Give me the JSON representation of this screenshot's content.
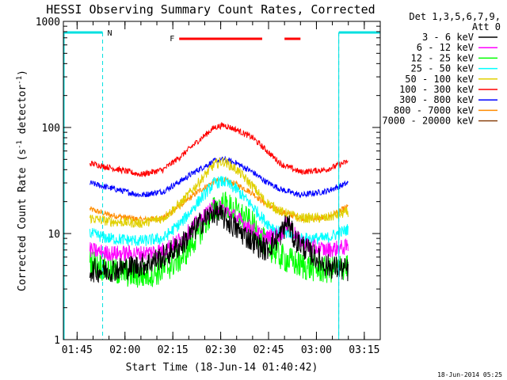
{
  "chart_data": {
    "type": "line",
    "title": "HESSI Observing Summary Count Rates, Corrected",
    "xlabel": "Start Time (18-Jun-14 01:40:42)",
    "ylabel": "Corrected Count Rate (s⁻¹ detector⁻¹)",
    "ylabel_parts": {
      "base": "Corrected Count Rate (s",
      "sup1": "-1",
      "mid": " detector",
      "sup2": "-1",
      "end": ")"
    },
    "yscale": "log",
    "ylim": [
      1,
      1000
    ],
    "xlim": [
      "01:40:42",
      "03:20:00"
    ],
    "x_ticks": [
      "01:45",
      "02:00",
      "02:15",
      "02:30",
      "02:45",
      "03:00",
      "03:15"
    ],
    "y_ticks": [
      "1",
      "10",
      "100",
      "1000"
    ],
    "grid": false,
    "legend_position": "right-outside",
    "legend_title": [
      "Det 1,3,5,6,7,9,",
      "Att 0"
    ],
    "footer_date": "18-Jun-2014 05:25",
    "annotations": [
      {
        "text": "N",
        "type": "night",
        "color": "#00e0e0"
      },
      {
        "text": "F",
        "type": "flare",
        "color": "#ff0000"
      }
    ],
    "night_intervals": [
      [
        "01:40:42",
        "01:53:00"
      ],
      [
        "03:07:00",
        "03:20:00"
      ]
    ],
    "flare_intervals": [
      [
        "02:17:00",
        "02:43:00"
      ],
      [
        "02:50:00",
        "02:55:00"
      ]
    ],
    "data_interval": [
      "01:49:00",
      "03:10:00"
    ],
    "series": [
      {
        "name": "3 - 6 keV",
        "color": "#000000",
        "noise": 0.12,
        "points": [
          [
            "01:49:00",
            4.5
          ],
          [
            "01:55:00",
            4.5
          ],
          [
            "02:05:00",
            5.0
          ],
          [
            "02:12:00",
            6.0
          ],
          [
            "02:18:00",
            8.0
          ],
          [
            "02:23:00",
            12.0
          ],
          [
            "02:28:00",
            16.0
          ],
          [
            "02:31:00",
            14.0
          ],
          [
            "02:35:00",
            11.0
          ],
          [
            "02:40:00",
            8.5
          ],
          [
            "02:44:00",
            7.0
          ],
          [
            "02:48:00",
            9.0
          ],
          [
            "02:51:00",
            13.0
          ],
          [
            "02:53:00",
            9.0
          ],
          [
            "02:57:00",
            7.0
          ],
          [
            "03:03:00",
            5.0
          ],
          [
            "03:10:00",
            4.5
          ]
        ]
      },
      {
        "name": "6 - 12 keV",
        "color": "#ff00ff",
        "noise": 0.08,
        "points": [
          [
            "01:49:00",
            7.0
          ],
          [
            "01:55:00",
            6.5
          ],
          [
            "02:05:00",
            6.5
          ],
          [
            "02:12:00",
            7.0
          ],
          [
            "02:18:00",
            9.0
          ],
          [
            "02:23:00",
            13.0
          ],
          [
            "02:28:00",
            18.0
          ],
          [
            "02:31:00",
            17.0
          ],
          [
            "02:35:00",
            14.0
          ],
          [
            "02:40:00",
            11.0
          ],
          [
            "02:44:00",
            9.0
          ],
          [
            "02:49:00",
            10.0
          ],
          [
            "02:51:00",
            13.0
          ],
          [
            "02:54:00",
            9.0
          ],
          [
            "02:58:00",
            7.5
          ],
          [
            "03:03:00",
            7.0
          ],
          [
            "03:10:00",
            7.5
          ]
        ]
      },
      {
        "name": "12 - 25 keV",
        "color": "#00ff00",
        "noise": 0.14,
        "points": [
          [
            "01:49:00",
            5.5
          ],
          [
            "01:55:00",
            4.5
          ],
          [
            "02:05:00",
            4.0
          ],
          [
            "02:12:00",
            4.5
          ],
          [
            "02:18:00",
            6.0
          ],
          [
            "02:23:00",
            10.0
          ],
          [
            "02:28:00",
            17.0
          ],
          [
            "02:31:00",
            19.0
          ],
          [
            "02:35:00",
            16.0
          ],
          [
            "02:40:00",
            12.0
          ],
          [
            "02:44:00",
            8.0
          ],
          [
            "02:49:00",
            6.0
          ],
          [
            "02:55:00",
            5.0
          ],
          [
            "03:03:00",
            4.5
          ],
          [
            "03:10:00",
            5.0
          ]
        ]
      },
      {
        "name": "25 - 50 keV",
        "color": "#00ffff",
        "noise": 0.06,
        "points": [
          [
            "01:49:00",
            10.0
          ],
          [
            "01:55:00",
            9.0
          ],
          [
            "02:05:00",
            8.5
          ],
          [
            "02:12:00",
            9.0
          ],
          [
            "02:18:00",
            13.0
          ],
          [
            "02:23:00",
            20.0
          ],
          [
            "02:28:00",
            30.0
          ],
          [
            "02:31:00",
            31.0
          ],
          [
            "02:35:00",
            26.0
          ],
          [
            "02:40:00",
            18.0
          ],
          [
            "02:44:00",
            13.0
          ],
          [
            "02:49:00",
            10.0
          ],
          [
            "02:55:00",
            9.0
          ],
          [
            "03:03:00",
            9.0
          ],
          [
            "03:10:00",
            11.0
          ]
        ]
      },
      {
        "name": "50 - 100 keV",
        "color": "#e0d000",
        "noise": 0.05,
        "points": [
          [
            "01:49:00",
            14.0
          ],
          [
            "01:55:00",
            13.0
          ],
          [
            "02:05:00",
            12.5
          ],
          [
            "02:12:00",
            14.0
          ],
          [
            "02:18:00",
            20.0
          ],
          [
            "02:23:00",
            30.0
          ],
          [
            "02:28:00",
            45.0
          ],
          [
            "02:31:00",
            48.0
          ],
          [
            "02:35:00",
            40.0
          ],
          [
            "02:40:00",
            28.0
          ],
          [
            "02:44:00",
            20.0
          ],
          [
            "02:49:00",
            16.0
          ],
          [
            "02:55:00",
            14.0
          ],
          [
            "03:03:00",
            14.0
          ],
          [
            "03:10:00",
            16.0
          ]
        ]
      },
      {
        "name": "100 - 300 keV",
        "color": "#ff0000",
        "noise": 0.03,
        "points": [
          [
            "01:49:00",
            46.0
          ],
          [
            "01:55:00",
            42.0
          ],
          [
            "02:05:00",
            36.0
          ],
          [
            "02:12:00",
            40.0
          ],
          [
            "02:18:00",
            55.0
          ],
          [
            "02:23:00",
            75.0
          ],
          [
            "02:28:00",
            100.0
          ],
          [
            "02:31:00",
            105.0
          ],
          [
            "02:35:00",
            95.0
          ],
          [
            "02:40:00",
            80.0
          ],
          [
            "02:44:00",
            62.0
          ],
          [
            "02:49:00",
            45.0
          ],
          [
            "02:55:00",
            38.0
          ],
          [
            "03:03:00",
            40.0
          ],
          [
            "03:10:00",
            48.0
          ]
        ]
      },
      {
        "name": "300 - 800 keV",
        "color": "#0000ff",
        "noise": 0.03,
        "points": [
          [
            "01:49:00",
            30.0
          ],
          [
            "01:55:00",
            27.0
          ],
          [
            "02:05:00",
            23.0
          ],
          [
            "02:12:00",
            25.0
          ],
          [
            "02:18:00",
            32.0
          ],
          [
            "02:23:00",
            40.0
          ],
          [
            "02:28:00",
            48.0
          ],
          [
            "02:31:00",
            50.0
          ],
          [
            "02:35:00",
            46.0
          ],
          [
            "02:40:00",
            38.0
          ],
          [
            "02:44:00",
            31.0
          ],
          [
            "02:49:00",
            26.0
          ],
          [
            "02:55:00",
            23.0
          ],
          [
            "03:03:00",
            25.0
          ],
          [
            "03:10:00",
            30.0
          ]
        ]
      },
      {
        "name": "800 - 7000 keV",
        "color": "#ff8c00",
        "noise": 0.03,
        "points": [
          [
            "01:49:00",
            17.0
          ],
          [
            "01:55:00",
            15.0
          ],
          [
            "02:05:00",
            13.5
          ],
          [
            "02:12:00",
            14.0
          ],
          [
            "02:18:00",
            19.0
          ],
          [
            "02:23:00",
            25.0
          ],
          [
            "02:28:00",
            31.0
          ],
          [
            "02:31:00",
            32.0
          ],
          [
            "02:35:00",
            29.0
          ],
          [
            "02:40:00",
            24.0
          ],
          [
            "02:44:00",
            19.0
          ],
          [
            "02:49:00",
            16.0
          ],
          [
            "02:55:00",
            14.0
          ],
          [
            "03:03:00",
            14.0
          ],
          [
            "03:10:00",
            18.0
          ]
        ]
      },
      {
        "name": "7000 - 20000 keV",
        "color": "#8b4513",
        "noise": 0.04,
        "points": []
      }
    ]
  }
}
